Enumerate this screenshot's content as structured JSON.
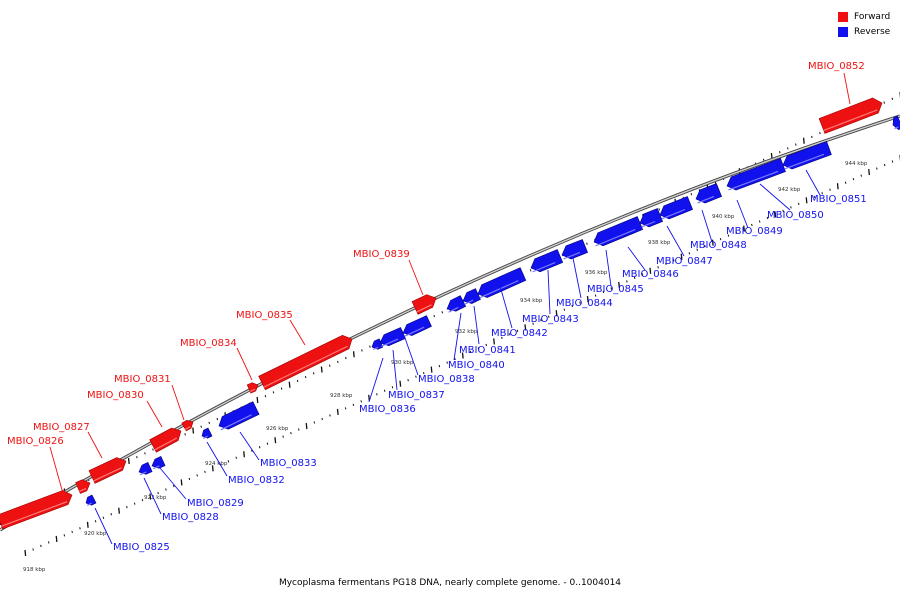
{
  "caption": "Mycoplasma fermentans PG18 DNA, nearly complete genome. - 0..1004014",
  "legend": [
    {
      "label": "Forward",
      "color": "#ee1111"
    },
    {
      "label": "Reverse",
      "color": "#1111ee"
    }
  ],
  "kbp_labels": [
    "918 kbp",
    "920 kbp",
    "922 kbp",
    "924 kbp",
    "926 kbp",
    "928 kbp",
    "930 kbp",
    "932 kbp",
    "934 kbp",
    "936 kbp",
    "938 kbp",
    "940 kbp",
    "942 kbp",
    "944 kbp"
  ],
  "forward_genes": [
    {
      "name": "MBIO_0826"
    },
    {
      "name": "MBIO_0827"
    },
    {
      "name": "MBIO_0830"
    },
    {
      "name": "MBIO_0831"
    },
    {
      "name": "MBIO_0834"
    },
    {
      "name": "MBIO_0835"
    },
    {
      "name": "MBIO_0839"
    },
    {
      "name": "MBIO_0852"
    }
  ],
  "reverse_genes": [
    {
      "name": "MBIO_0825"
    },
    {
      "name": "MBIO_0828"
    },
    {
      "name": "MBIO_0829"
    },
    {
      "name": "MBIO_0832"
    },
    {
      "name": "MBIO_0833"
    },
    {
      "name": "MBIO_0836"
    },
    {
      "name": "MBIO_0837"
    },
    {
      "name": "MBIO_0838"
    },
    {
      "name": "MBIO_0840"
    },
    {
      "name": "MBIO_0841"
    },
    {
      "name": "MBIO_0842"
    },
    {
      "name": "MBIO_0843"
    },
    {
      "name": "MBIO_0844"
    },
    {
      "name": "MBIO_0845"
    },
    {
      "name": "MBIO_0846"
    },
    {
      "name": "MBIO_0847"
    },
    {
      "name": "MBIO_0848"
    },
    {
      "name": "MBIO_0849"
    },
    {
      "name": "MBIO_0850"
    },
    {
      "name": "MBIO_0851"
    }
  ]
}
